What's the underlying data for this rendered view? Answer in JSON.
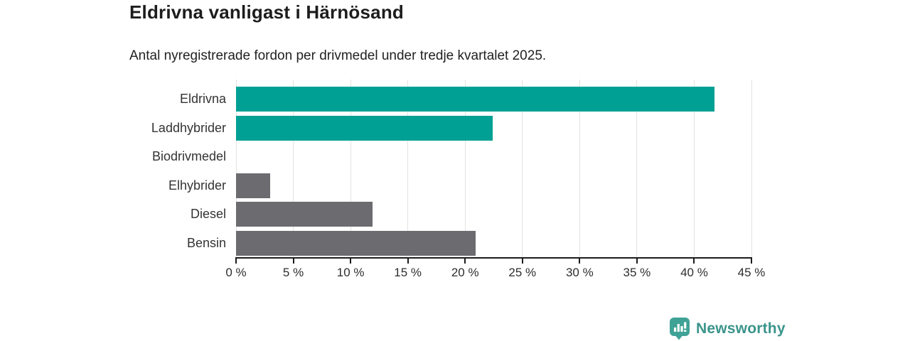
{
  "header": {
    "title": "Eldrivna vanligast i Härnösand",
    "subtitle": "Antal nyregistrerade fordon per drivmedel under tredje kvartalet 2025."
  },
  "chart_data": {
    "type": "bar",
    "orientation": "horizontal",
    "title": "Eldrivna vanligast i Härnösand",
    "subtitle": "Antal nyregistrerade fordon per drivmedel under tredje kvartalet 2025.",
    "categories": [
      "Eldrivna",
      "Laddhybrider",
      "Biodrivmedel",
      "Elhybrider",
      "Diesel",
      "Bensin"
    ],
    "values": [
      41.8,
      22.4,
      0,
      3.0,
      11.9,
      20.9
    ],
    "unit": "%",
    "bar_colors": [
      "#00a094",
      "#00a094",
      "#6b6b70",
      "#6b6b70",
      "#6b6b70",
      "#6b6b70"
    ],
    "xlabel": "",
    "ylabel": "",
    "xlim": [
      0,
      45
    ],
    "x_tick_values": [
      0,
      5,
      10,
      15,
      20,
      25,
      30,
      35,
      40,
      45
    ],
    "x_tick_labels": [
      "0 %",
      "5 %",
      "10 %",
      "15 %",
      "20 %",
      "25 %",
      "30 %",
      "35 %",
      "40 %",
      "45 %"
    ],
    "grid": "vertical",
    "legend": "none"
  },
  "colors": {
    "teal": "#00a094",
    "gray": "#6b6b70",
    "gridline": "#e3e3e3",
    "axis": "#1c1c1c",
    "brand_teal": "#3a948b",
    "brand_icon_teal": "#3fa296"
  },
  "footer": {
    "brand": "Newsworthy"
  }
}
